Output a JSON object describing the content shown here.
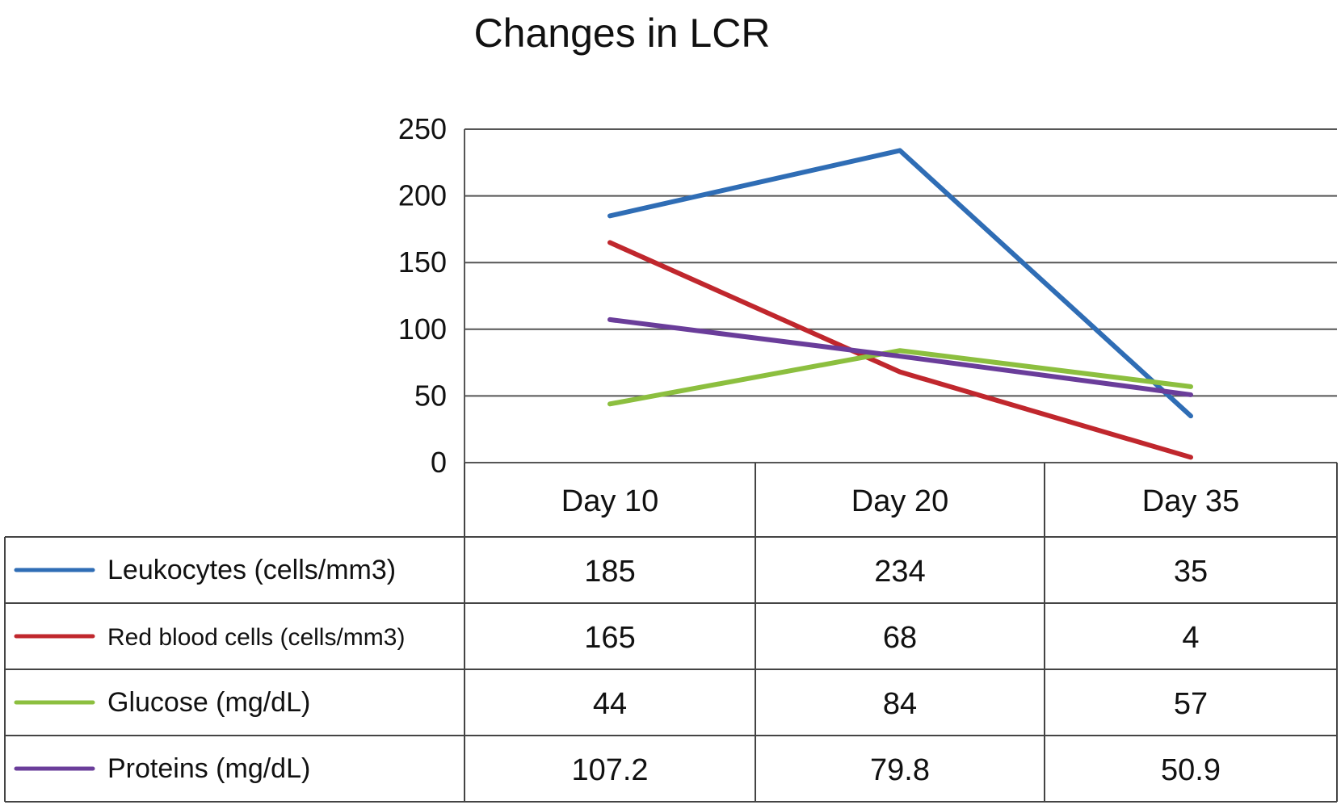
{
  "chart_data": {
    "type": "line",
    "title": "Changes in LCR",
    "categories": [
      "Day 10",
      "Day 20",
      "Day 35"
    ],
    "ylim": [
      0,
      250
    ],
    "yticks": [
      "0",
      "50",
      "100",
      "150",
      "200",
      "250"
    ],
    "grid": true,
    "legend_placement": "data-table-left",
    "series": [
      {
        "name": "Leukocytes (cells/mm3)",
        "values": [
          185,
          234,
          35
        ],
        "labels": [
          "185",
          "234",
          "35"
        ],
        "color": "#2f6db5"
      },
      {
        "name": "Red blood cells (cells/mm3)",
        "values": [
          165,
          68,
          4
        ],
        "labels": [
          "165",
          "68",
          "4"
        ],
        "color": "#c0272d"
      },
      {
        "name": "Glucose (mg/dL)",
        "values": [
          44,
          84,
          57
        ],
        "labels": [
          "44",
          "84",
          "57"
        ],
        "color": "#8cbf3f"
      },
      {
        "name": "Proteins (mg/dL)",
        "values": [
          107.2,
          79.8,
          50.9
        ],
        "labels": [
          "107.2",
          "79.8",
          "50.9"
        ],
        "color": "#6a3d9a"
      }
    ]
  }
}
